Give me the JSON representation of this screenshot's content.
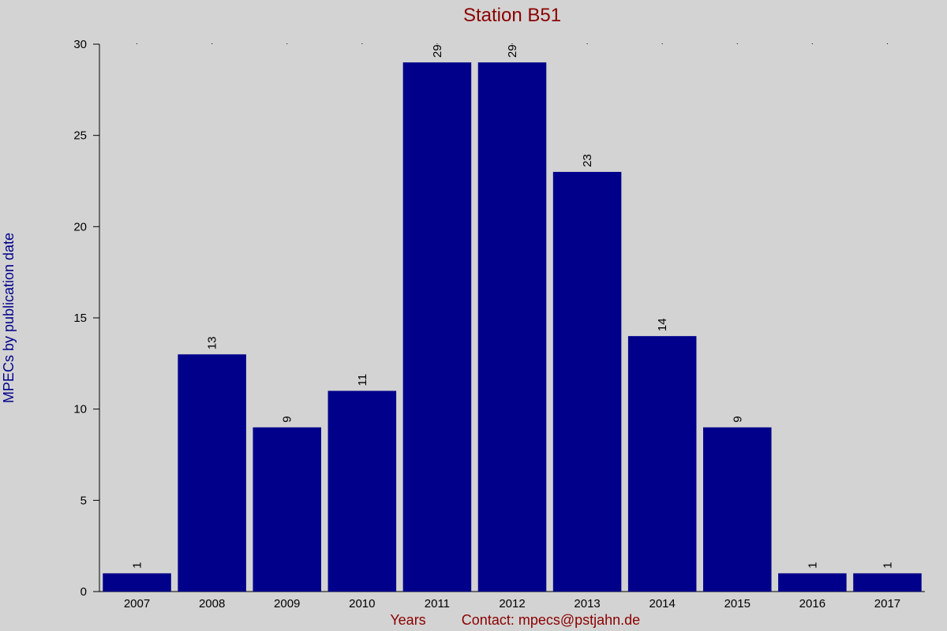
{
  "chart_data": {
    "type": "bar",
    "title": "Station B51",
    "ylabel": "MPECs by publication date",
    "xlabel": "Years",
    "contact": "Contact: mpecs@pstjahn.de",
    "categories": [
      "2007",
      "2008",
      "2009",
      "2010",
      "2011",
      "2012",
      "2013",
      "2014",
      "2015",
      "2016",
      "2017"
    ],
    "values": [
      1,
      13,
      9,
      11,
      29,
      29,
      23,
      14,
      9,
      1,
      1
    ],
    "ylim": [
      0,
      30
    ],
    "yticks": [
      0,
      5,
      10,
      15,
      20,
      25,
      30
    ],
    "bar_color": "#00008b",
    "background": "#d3d3d3",
    "grid": false,
    "data_labels": true
  }
}
